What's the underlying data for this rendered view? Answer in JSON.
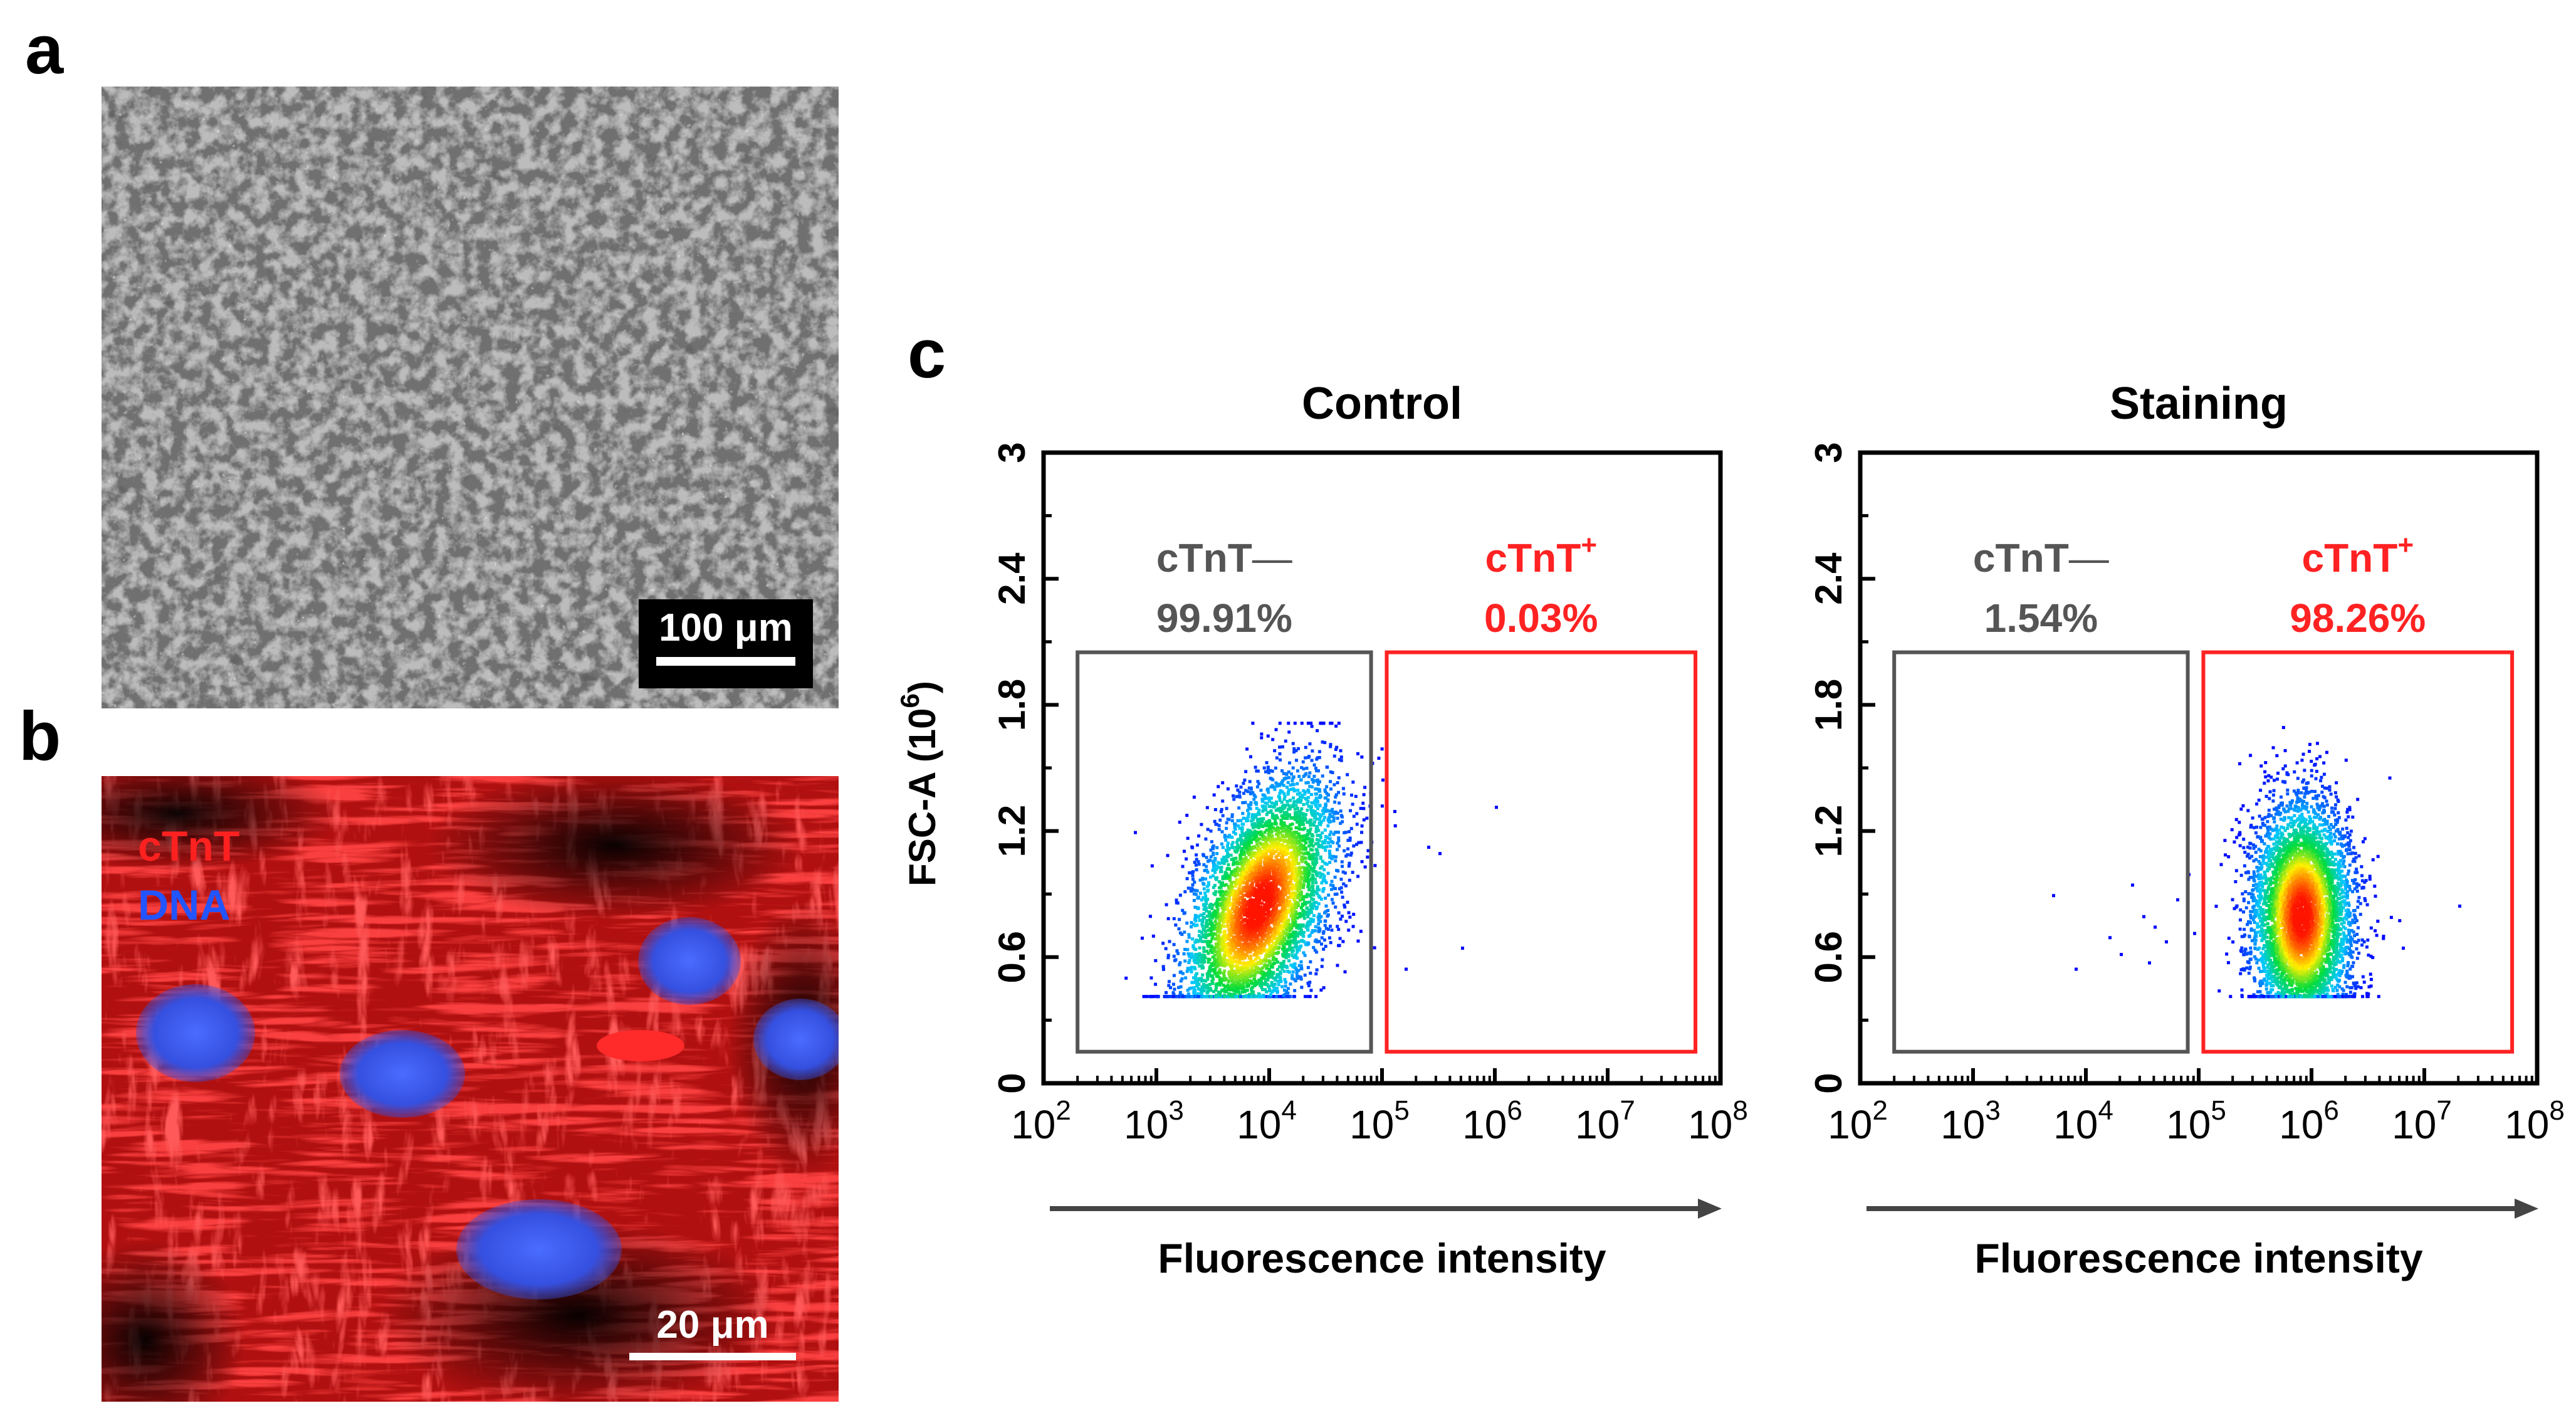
{
  "panels": {
    "a": "a",
    "b": "b",
    "c": "c"
  },
  "micrograph_a": {
    "scale_label": "100 μm"
  },
  "micrograph_b": {
    "scale_label": "20 μm",
    "channel_1": "cTnT",
    "channel_2": "DNA",
    "channel_1_color": "#ff2020",
    "channel_2_color": "#2255ff"
  },
  "colors": {
    "negative_gate": "#555555",
    "positive_gate": "#ff2222",
    "axis": "#000000",
    "arrow": "#444444"
  },
  "chart_data": [
    {
      "type": "scatter",
      "title": "Control",
      "xlabel": "Fluorescence intensity",
      "ylabel": "FSC-A (10",
      "ylabel_exp": "6",
      "ylabel_close": ")",
      "x_scale": "log",
      "xlim": [
        100,
        100000000
      ],
      "ylim": [
        0,
        3
      ],
      "x_ticks": [
        {
          "base": "10",
          "exp": "2"
        },
        {
          "base": "10",
          "exp": "3"
        },
        {
          "base": "10",
          "exp": "4"
        },
        {
          "base": "10",
          "exp": "5"
        },
        {
          "base": "10",
          "exp": "6"
        },
        {
          "base": "10",
          "exp": "7"
        },
        {
          "base": "10",
          "exp": "8"
        }
      ],
      "y_ticks": [
        "0",
        "0.6",
        "1.2",
        "1.8",
        "2.4",
        "3"
      ],
      "gates": [
        {
          "name": "cTnT",
          "sign": "—",
          "percent": "99.91%",
          "polarity": "negative",
          "x_range": [
            200,
            80000
          ],
          "y_range": [
            0.15,
            2.05
          ]
        },
        {
          "name": "cTnT",
          "sign": "+",
          "percent": "0.03%",
          "polarity": "positive",
          "x_range": [
            110000,
            60000000
          ],
          "y_range": [
            0.15,
            2.05
          ]
        }
      ],
      "population": {
        "center_log10x": 3.9,
        "center_y": 0.85,
        "spread": "main population 10^3–10^5, FSC 0.4–1.7"
      }
    },
    {
      "type": "scatter",
      "title": "Staining",
      "xlabel": "Fluorescence intensity",
      "x_scale": "log",
      "xlim": [
        100,
        100000000
      ],
      "ylim": [
        0,
        3
      ],
      "x_ticks": [
        {
          "base": "10",
          "exp": "2"
        },
        {
          "base": "10",
          "exp": "3"
        },
        {
          "base": "10",
          "exp": "4"
        },
        {
          "base": "10",
          "exp": "5"
        },
        {
          "base": "10",
          "exp": "6"
        },
        {
          "base": "10",
          "exp": "7"
        },
        {
          "base": "10",
          "exp": "8"
        }
      ],
      "y_ticks": [
        "0",
        "0.6",
        "1.2",
        "1.8",
        "2.4",
        "3"
      ],
      "gates": [
        {
          "name": "cTnT",
          "sign": "—",
          "percent": "1.54%",
          "polarity": "negative",
          "x_range": [
            200,
            80000
          ],
          "y_range": [
            0.15,
            2.05
          ]
        },
        {
          "name": "cTnT",
          "sign": "+",
          "percent": "98.26%",
          "polarity": "positive",
          "x_range": [
            110000,
            60000000
          ],
          "y_range": [
            0.15,
            2.05
          ]
        }
      ],
      "population": {
        "center_log10x": 5.9,
        "center_y": 0.8,
        "spread": "main population 10^5–10^7, FSC 0.4–1.7"
      }
    }
  ]
}
